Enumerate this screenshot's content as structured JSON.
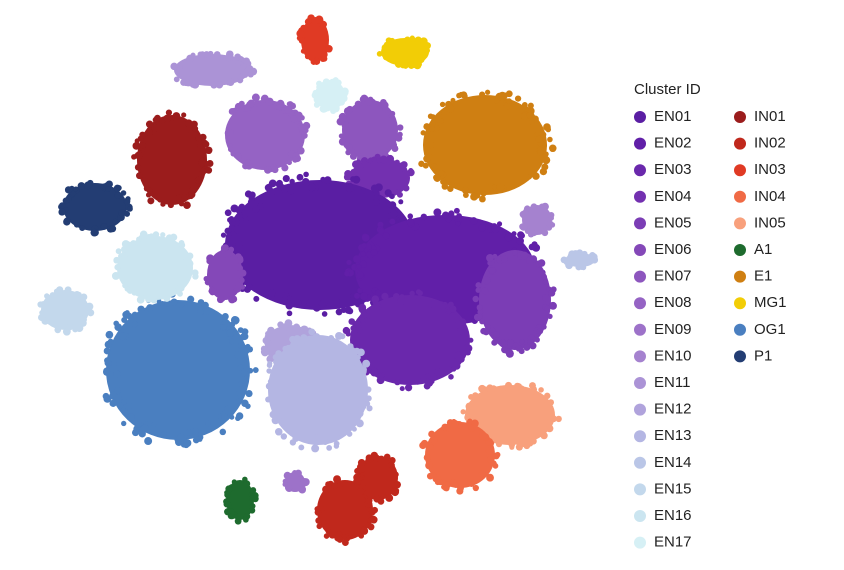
{
  "chart_data": {
    "type": "scatter",
    "legend_title": "Cluster ID",
    "legend": "right",
    "series": [
      {
        "name": "EN01",
        "color": "#5a1ea3"
      },
      {
        "name": "EN02",
        "color": "#611fa8"
      },
      {
        "name": "EN03",
        "color": "#6a28ac"
      },
      {
        "name": "EN04",
        "color": "#7330b0"
      },
      {
        "name": "EN05",
        "color": "#7b3db5"
      },
      {
        "name": "EN06",
        "color": "#8448b8"
      },
      {
        "name": "EN07",
        "color": "#8d56be"
      },
      {
        "name": "EN08",
        "color": "#9563c4"
      },
      {
        "name": "EN09",
        "color": "#9d72c9"
      },
      {
        "name": "EN10",
        "color": "#a582cf"
      },
      {
        "name": "EN11",
        "color": "#ab93d6"
      },
      {
        "name": "EN12",
        "color": "#b0a3dc"
      },
      {
        "name": "EN13",
        "color": "#b4b6e3"
      },
      {
        "name": "EN14",
        "color": "#bac6e7"
      },
      {
        "name": "EN15",
        "color": "#c3d8ec"
      },
      {
        "name": "EN16",
        "color": "#cbe5f0"
      },
      {
        "name": "EN17",
        "color": "#d6f0f5"
      },
      {
        "name": "IN01",
        "color": "#9b1c1c"
      },
      {
        "name": "IN02",
        "color": "#c0281c"
      },
      {
        "name": "IN03",
        "color": "#e03a24"
      },
      {
        "name": "IN04",
        "color": "#f06a45"
      },
      {
        "name": "IN05",
        "color": "#f8a07c"
      },
      {
        "name": "A1",
        "color": "#1e6b2e"
      },
      {
        "name": "E1",
        "color": "#cf7f12"
      },
      {
        "name": "MG1",
        "color": "#f2cd06"
      },
      {
        "name": "OG1",
        "color": "#4a7fc0"
      },
      {
        "name": "P1",
        "color": "#233d73"
      }
    ]
  }
}
